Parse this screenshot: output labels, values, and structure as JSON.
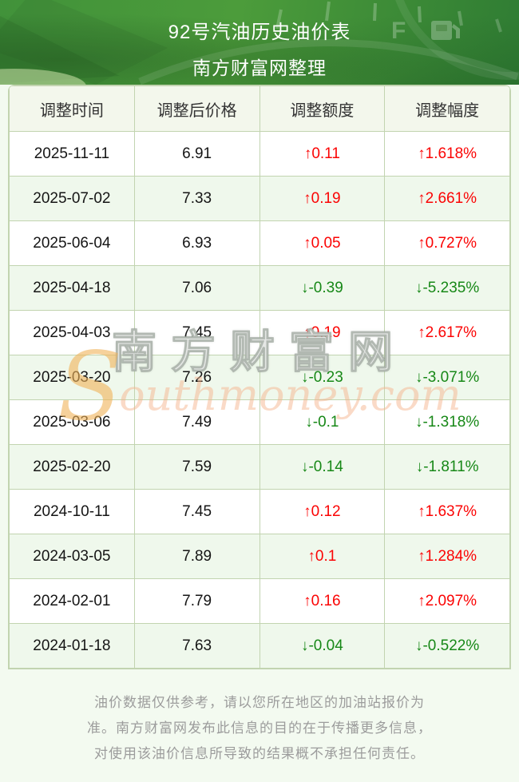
{
  "hero": {
    "title": "92号汽油历史油价表",
    "subtitle": "南方财富网整理",
    "gauge_label": "F"
  },
  "table": {
    "headers": [
      "调整时间",
      "调整后价格",
      "调整额度",
      "调整幅度"
    ],
    "rows": [
      {
        "date": "2025-11-11",
        "price": "6.91",
        "change": "↑0.11",
        "pct": "↑1.618%",
        "dir": "up"
      },
      {
        "date": "2025-07-02",
        "price": "7.33",
        "change": "↑0.19",
        "pct": "↑2.661%",
        "dir": "up"
      },
      {
        "date": "2025-06-04",
        "price": "6.93",
        "change": "↑0.05",
        "pct": "↑0.727%",
        "dir": "up"
      },
      {
        "date": "2025-04-18",
        "price": "7.06",
        "change": "↓-0.39",
        "pct": "↓-5.235%",
        "dir": "down"
      },
      {
        "date": "2025-04-03",
        "price": "7.45",
        "change": "↑0.19",
        "pct": "↑2.617%",
        "dir": "up"
      },
      {
        "date": "2025-03-20",
        "price": "7.26",
        "change": "↓-0.23",
        "pct": "↓-3.071%",
        "dir": "down"
      },
      {
        "date": "2025-03-06",
        "price": "7.49",
        "change": "↓-0.1",
        "pct": "↓-1.318%",
        "dir": "down"
      },
      {
        "date": "2025-02-20",
        "price": "7.59",
        "change": "↓-0.14",
        "pct": "↓-1.811%",
        "dir": "down"
      },
      {
        "date": "2024-10-11",
        "price": "7.45",
        "change": "↑0.12",
        "pct": "↑1.637%",
        "dir": "up"
      },
      {
        "date": "2024-03-05",
        "price": "7.89",
        "change": "↑0.1",
        "pct": "↑1.284%",
        "dir": "up"
      },
      {
        "date": "2024-02-01",
        "price": "7.79",
        "change": "↑0.16",
        "pct": "↑2.097%",
        "dir": "up"
      },
      {
        "date": "2024-01-18",
        "price": "7.63",
        "change": "↓-0.04",
        "pct": "↓-0.522%",
        "dir": "down"
      }
    ]
  },
  "watermark": {
    "cjk": "南方财富网",
    "initial": "S",
    "latin": "outhmoney.com"
  },
  "footer": {
    "lines": [
      "油价数据仅供参考，请以您所在地区的加油站报价为",
      "准。南方财富网发布此信息的目的在于传播更多信息，",
      "对使用该油价信息所导致的结果概不承担任何责任。"
    ]
  },
  "colors": {
    "up": "#fb0404",
    "down": "#178817",
    "border": "#c2d4b0",
    "row-alt": "#eff8ec",
    "header-bg": "#f3f7ec",
    "page-bg": "#f3faf0",
    "hero-green-1": "#41923a",
    "hero-green-2": "#4c9c3b",
    "hero-green-3": "#2f7c33",
    "footer-text": "#9c9c9c"
  }
}
